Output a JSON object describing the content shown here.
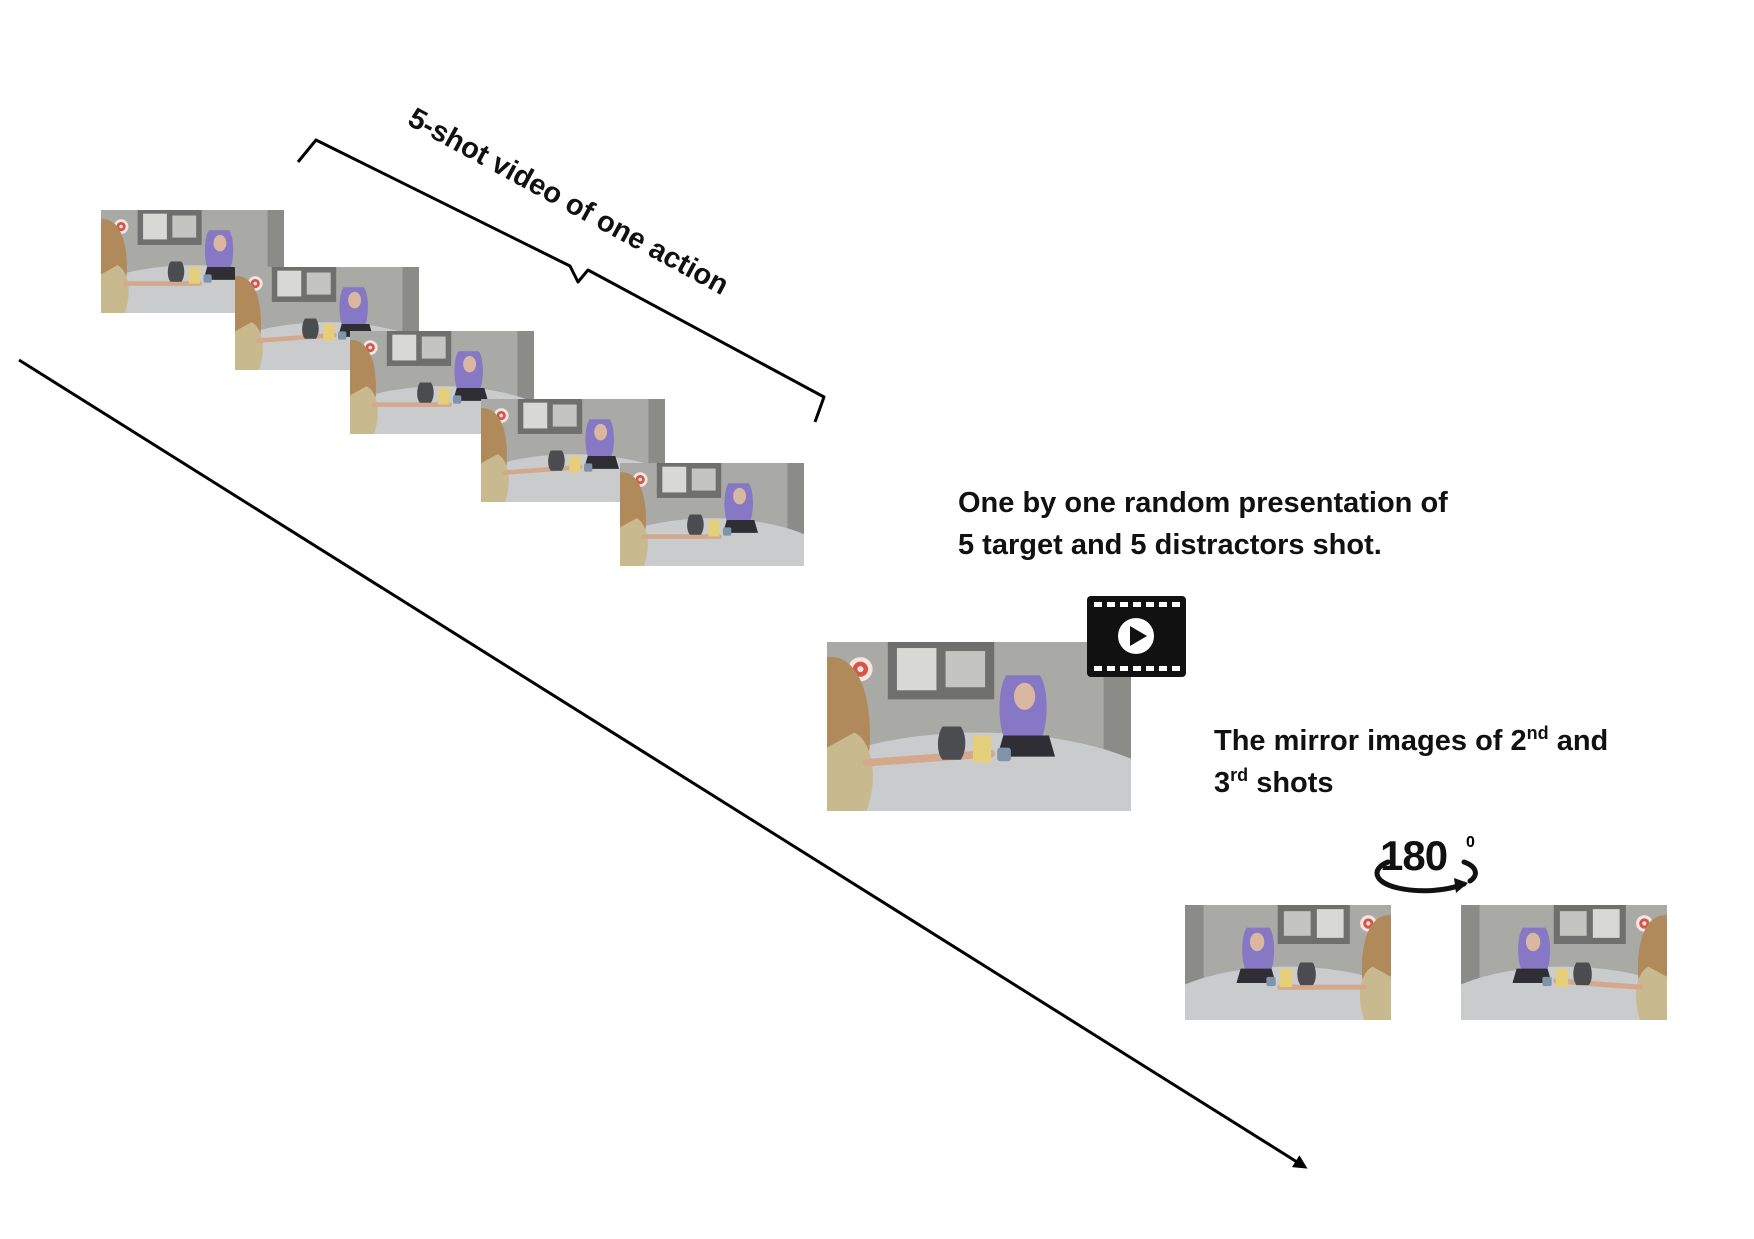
{
  "bracket": {
    "label": "5-shot video of one action"
  },
  "presentation": {
    "line1": "One by one random presentation of",
    "line2": "5 target and 5 distractors shot."
  },
  "mirror": {
    "prefix": "The mirror images of 2",
    "sup1": "nd",
    "middle": " and",
    "line2_start": "3",
    "sup2": "rd",
    "suffix": " shots"
  },
  "rotation": {
    "value": "180",
    "degree_mark": "0"
  },
  "icons": {
    "video": "video-play-icon",
    "rotate": "rotate-arrow-icon"
  },
  "colors": {
    "line": "#000000",
    "table": "#c9cbcc",
    "wall": "#a9aaa6",
    "hair_purple": "#8678c4",
    "hair_blond": "#b08a5a",
    "object": "#e6cf7a"
  }
}
